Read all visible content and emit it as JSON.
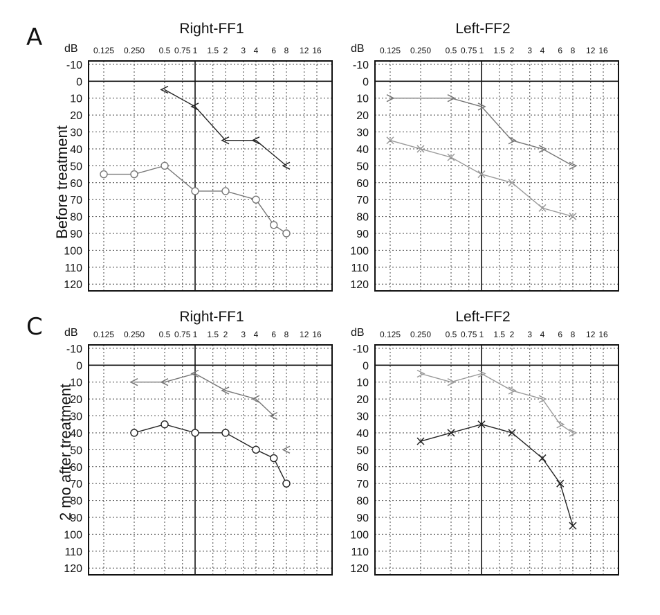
{
  "panels": [
    {
      "letter": "A",
      "row_label": "Before treatment"
    },
    {
      "letter": "C",
      "row_label": "2 mo after treatment"
    }
  ],
  "axis": {
    "db_label": "dB",
    "x_ticks": [
      "0.125",
      "0.250",
      "0.5",
      "0.75",
      "1",
      "1.5",
      "2",
      "3",
      "4",
      "6",
      "8",
      "12",
      "16"
    ],
    "y_ticks": [
      "-10",
      "0",
      "10",
      "20",
      "30",
      "40",
      "50",
      "60",
      "70",
      "80",
      "90",
      "100",
      "110",
      "120"
    ]
  },
  "colors": {
    "dark": "#222222",
    "gray": "#777777",
    "light": "#9a9a9a"
  },
  "chart_data": [
    {
      "type": "line",
      "title": "Right-FF1",
      "xlabel": "",
      "ylabel": "dB",
      "x_scale": "log",
      "y_inverted": true,
      "ylim": [
        -10,
        120
      ],
      "grid": true,
      "series": [
        {
          "marker": "lt",
          "color": "dark",
          "x": [
            0.5,
            1,
            2,
            4,
            8
          ],
          "y": [
            5,
            15,
            35,
            35,
            50
          ]
        },
        {
          "marker": "o",
          "color": "gray",
          "x": [
            0.125,
            0.25,
            0.5,
            1,
            2,
            4,
            6,
            8
          ],
          "y": [
            55,
            55,
            50,
            65,
            65,
            70,
            85,
            90
          ]
        }
      ]
    },
    {
      "type": "line",
      "title": "Left-FF2",
      "xlabel": "",
      "ylabel": "dB",
      "x_scale": "log",
      "y_inverted": true,
      "ylim": [
        -10,
        120
      ],
      "grid": true,
      "series": [
        {
          "marker": "gt",
          "color": "gray",
          "x": [
            0.125,
            0.5,
            1,
            2,
            4,
            8
          ],
          "y": [
            10,
            10,
            15,
            35,
            40,
            50
          ]
        },
        {
          "marker": "x",
          "color": "light",
          "x": [
            0.125,
            0.25,
            0.5,
            1,
            2,
            4,
            8
          ],
          "y": [
            35,
            40,
            45,
            55,
            60,
            75,
            80
          ]
        }
      ]
    },
    {
      "type": "line",
      "title": "Right-FF1",
      "xlabel": "",
      "ylabel": "dB",
      "x_scale": "log",
      "y_inverted": true,
      "ylim": [
        -10,
        120
      ],
      "grid": true,
      "series": [
        {
          "marker": "lt",
          "color": "gray",
          "x": [
            0.25,
            0.5,
            1,
            2,
            4,
            6
          ],
          "y": [
            10,
            10,
            5,
            15,
            20,
            30
          ]
        },
        {
          "marker": "lt",
          "color": "gray",
          "x": [
            8
          ],
          "y": [
            50
          ]
        },
        {
          "marker": "o",
          "color": "dark",
          "x": [
            0.25,
            0.5,
            1,
            2,
            4,
            6,
            8
          ],
          "y": [
            40,
            35,
            40,
            40,
            50,
            55,
            70
          ]
        }
      ]
    },
    {
      "type": "line",
      "title": "Left-FF2",
      "xlabel": "",
      "ylabel": "dB",
      "x_scale": "log",
      "y_inverted": true,
      "ylim": [
        -10,
        120
      ],
      "grid": true,
      "series": [
        {
          "marker": "gt",
          "color": "light",
          "x": [
            0.25,
            0.5,
            1,
            2,
            4,
            6,
            8
          ],
          "y": [
            5,
            10,
            5,
            15,
            20,
            35,
            40
          ]
        },
        {
          "marker": "x",
          "color": "dark",
          "x": [
            0.25,
            0.5,
            1,
            2,
            4,
            6,
            8
          ],
          "y": [
            45,
            40,
            35,
            40,
            55,
            70,
            95
          ]
        }
      ]
    }
  ]
}
